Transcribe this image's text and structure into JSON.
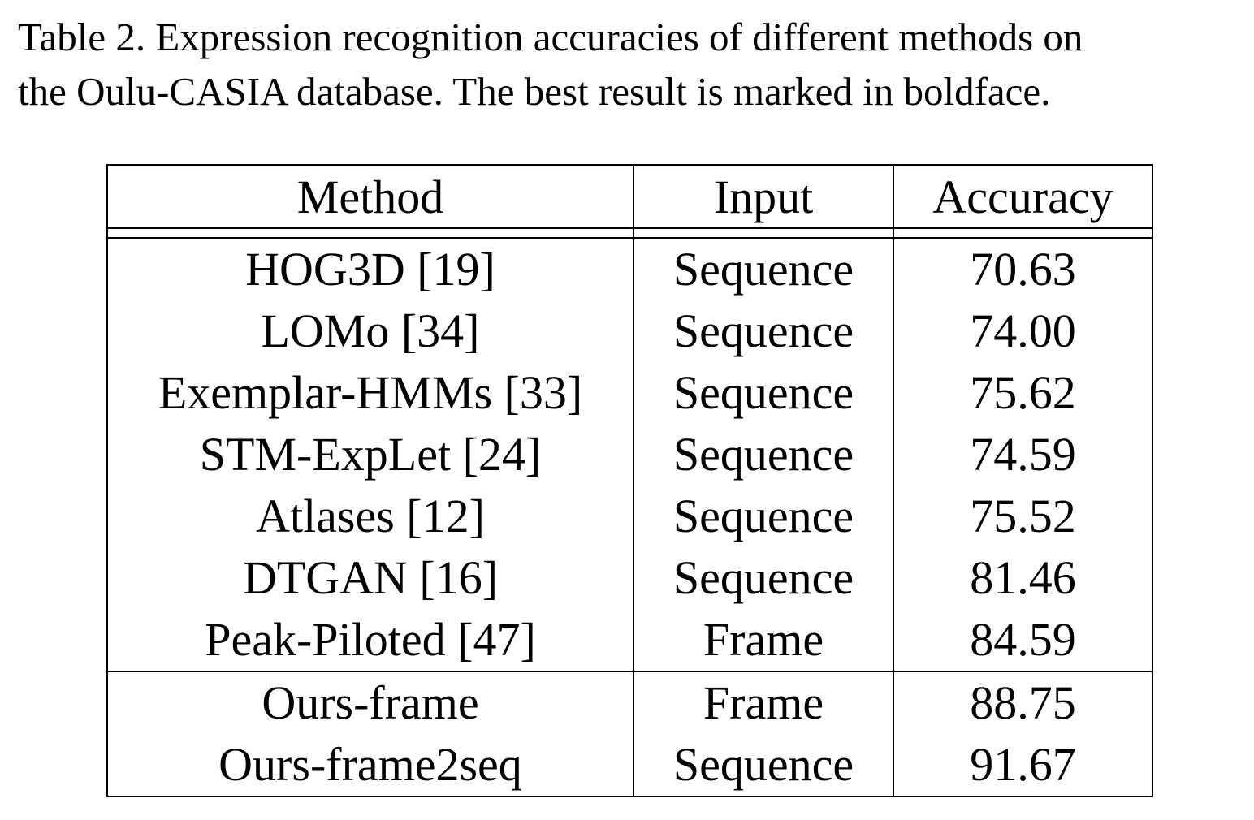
{
  "caption": {
    "line1": "Table 2. Expression recognition accuracies of different methods on",
    "line2": "the Oulu-CASIA database. The best result is marked in boldface."
  },
  "table": {
    "headers": [
      "Method",
      "Input",
      "Accuracy"
    ],
    "rows": [
      {
        "method": "HOG3D [19]",
        "input": "Sequence",
        "accuracy": "70.63"
      },
      {
        "method": "LOMo [34]",
        "input": "Sequence",
        "accuracy": "74.00"
      },
      {
        "method": "Exemplar-HMMs [33]",
        "input": "Sequence",
        "accuracy": "75.62"
      },
      {
        "method": "STM-ExpLet [24]",
        "input": "Sequence",
        "accuracy": "74.59"
      },
      {
        "method": "Atlases [12]",
        "input": "Sequence",
        "accuracy": "75.52"
      },
      {
        "method": "DTGAN [16]",
        "input": "Sequence",
        "accuracy": "81.46"
      },
      {
        "method": "Peak-Piloted [47]",
        "input": "Frame",
        "accuracy": "84.59"
      }
    ],
    "ours": [
      {
        "method": "Ours-frame",
        "input": "Frame",
        "accuracy": "88.75"
      },
      {
        "method": "Ours-frame2seq",
        "input": "Sequence",
        "accuracy": "91.67",
        "best": true
      }
    ]
  }
}
